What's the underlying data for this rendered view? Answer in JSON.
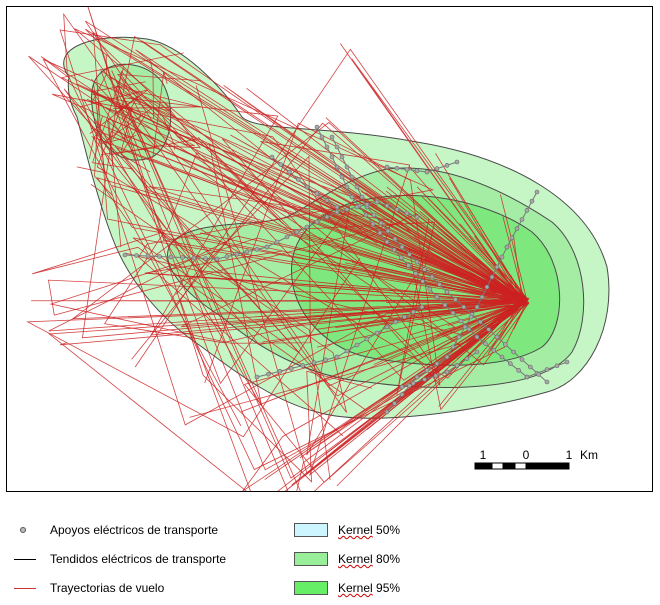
{
  "scale_bar": {
    "labels": [
      "1",
      "0",
      "1"
    ],
    "unit": "Km"
  },
  "legend": {
    "items": [
      {
        "id": "poles",
        "label": "Apoyos eléctricos de transporte",
        "symbol": "point",
        "color": "#9a9a9a"
      },
      {
        "id": "lines",
        "label": "Tendidos eléctricos de transporte",
        "symbol": "line",
        "color": "#000000"
      },
      {
        "id": "tracks",
        "label": "Trayectorias de vuelo",
        "symbol": "line",
        "color": "#cc3333"
      },
      {
        "id": "k50",
        "label": "Kernel 50%",
        "keyword": "Kernel",
        "suffix": " 50%",
        "symbol": "box",
        "color": "#ccf5ff"
      },
      {
        "id": "k80",
        "label": "Kernel 80%",
        "keyword": "Kernel",
        "suffix": " 80%",
        "symbol": "box",
        "color": "#99ee99"
      },
      {
        "id": "k95",
        "label": "Kernel 95%",
        "keyword": "Kernel",
        "suffix": " 95%",
        "symbol": "box",
        "color": "#66ee66"
      }
    ]
  },
  "colors": {
    "kernel_outer": "#c6f5c6",
    "kernel_mid": "#a5eda5",
    "kernel_inner": "#7ee87e",
    "track": "#cc2222",
    "power_line": "#777777",
    "pole_fill": "#a8a8a8"
  }
}
